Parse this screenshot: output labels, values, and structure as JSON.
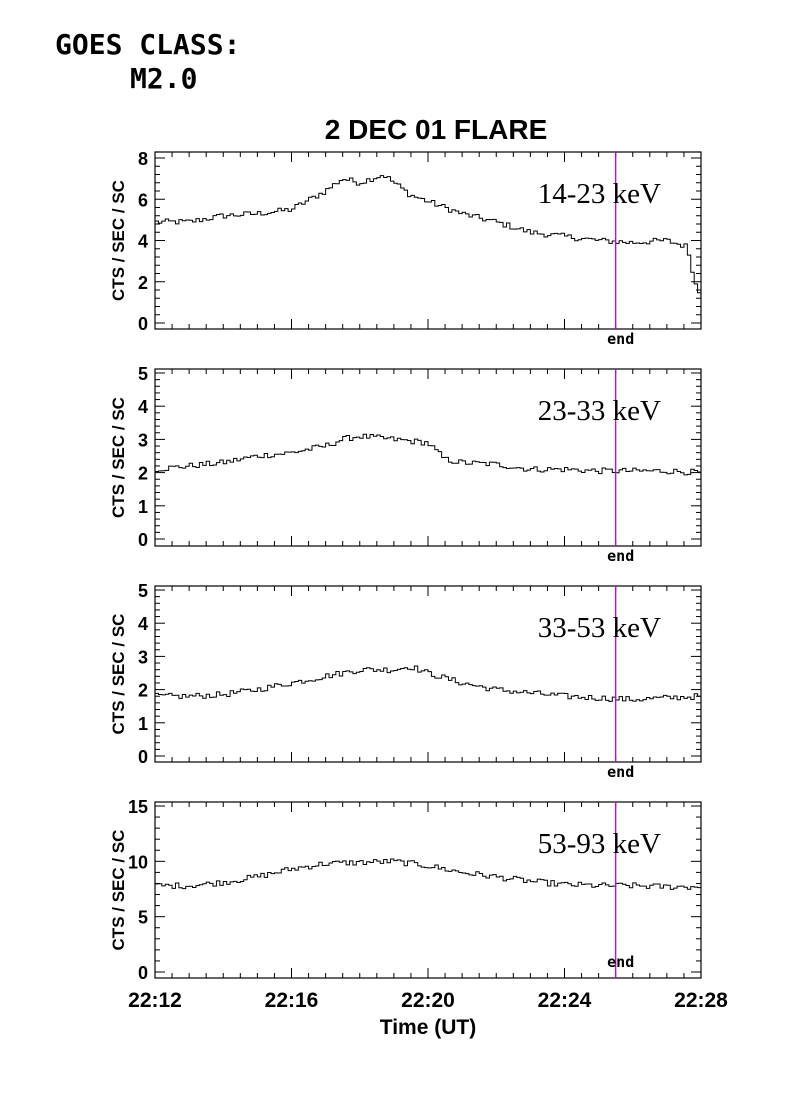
{
  "header": {
    "goes_label": "GOES CLASS:",
    "goes_class": "M2.0"
  },
  "chart_data": {
    "type": "line",
    "title": "2 DEC 01 FLARE",
    "xlabel": "Time (UT)",
    "x_ticks": [
      "22:12",
      "22:16",
      "22:20",
      "22:24",
      "22:28"
    ],
    "xlim_minutes": [
      0,
      16
    ],
    "end_marker_minute": 13.5,
    "end_label": "end",
    "end_line_color": "#cc00cc",
    "line_color": "#000000",
    "panels": [
      {
        "band": "14-23 keV",
        "ylabel": "CTS / SEC / SC",
        "ylim": [
          0,
          8
        ],
        "y_ticks": [
          "0",
          "2",
          "4",
          "6",
          "8"
        ],
        "profile": [
          [
            0,
            4.9
          ],
          [
            1,
            4.9
          ],
          [
            2,
            5.2
          ],
          [
            3,
            5.3
          ],
          [
            4,
            5.5
          ],
          [
            5,
            6.4
          ],
          [
            5.5,
            7.0
          ],
          [
            6,
            6.8
          ],
          [
            6.7,
            7.2
          ],
          [
            7.5,
            6.2
          ],
          [
            8,
            5.9
          ],
          [
            9,
            5.3
          ],
          [
            10,
            4.9
          ],
          [
            11,
            4.4
          ],
          [
            12,
            4.2
          ],
          [
            13,
            4.0
          ],
          [
            14,
            3.9
          ],
          [
            15,
            4.0
          ],
          [
            15.6,
            3.7
          ],
          [
            15.9,
            1.5
          ],
          [
            16,
            1.5
          ]
        ]
      },
      {
        "band": "23-33 keV",
        "ylabel": "CTS / SEC / SC",
        "ylim": [
          0,
          5
        ],
        "y_ticks": [
          "0",
          "1",
          "2",
          "3",
          "4",
          "5"
        ],
        "profile": [
          [
            0,
            2.1
          ],
          [
            1,
            2.2
          ],
          [
            2,
            2.3
          ],
          [
            3,
            2.5
          ],
          [
            4,
            2.6
          ],
          [
            5,
            2.8
          ],
          [
            5.5,
            3.0
          ],
          [
            6,
            3.1
          ],
          [
            7,
            3.0
          ],
          [
            8,
            2.9
          ],
          [
            8.5,
            2.4
          ],
          [
            9,
            2.3
          ],
          [
            10,
            2.25
          ],
          [
            11,
            2.1
          ],
          [
            12,
            2.1
          ],
          [
            13,
            2.05
          ],
          [
            14,
            2.05
          ],
          [
            15,
            2.05
          ],
          [
            16,
            2.0
          ]
        ]
      },
      {
        "band": "33-53 keV",
        "ylabel": "CTS / SEC / SC",
        "ylim": [
          0,
          5
        ],
        "y_ticks": [
          "0",
          "1",
          "2",
          "3",
          "4",
          "5"
        ],
        "profile": [
          [
            0,
            1.8
          ],
          [
            1,
            1.8
          ],
          [
            2,
            1.85
          ],
          [
            3,
            2.0
          ],
          [
            4,
            2.2
          ],
          [
            5,
            2.4
          ],
          [
            6,
            2.6
          ],
          [
            7,
            2.6
          ],
          [
            7.5,
            2.7
          ],
          [
            8,
            2.5
          ],
          [
            9,
            2.2
          ],
          [
            10,
            2.0
          ],
          [
            11,
            1.9
          ],
          [
            12,
            1.8
          ],
          [
            13,
            1.75
          ],
          [
            14,
            1.7
          ],
          [
            15,
            1.75
          ],
          [
            16,
            1.8
          ]
        ]
      },
      {
        "band": "53-93 keV",
        "ylabel": "CTS / SEC / SC",
        "ylim": [
          0,
          15
        ],
        "y_ticks": [
          "0",
          "5",
          "10",
          "15"
        ],
        "profile": [
          [
            0,
            7.8
          ],
          [
            1,
            7.8
          ],
          [
            2,
            8.1
          ],
          [
            3,
            8.6
          ],
          [
            4,
            9.3
          ],
          [
            5,
            9.8
          ],
          [
            6,
            9.9
          ],
          [
            7,
            10.0
          ],
          [
            8,
            9.6
          ],
          [
            9,
            9.0
          ],
          [
            10,
            8.6
          ],
          [
            11,
            8.2
          ],
          [
            12,
            7.9
          ],
          [
            13,
            7.8
          ],
          [
            14,
            7.8
          ],
          [
            15,
            7.7
          ],
          [
            16,
            7.7
          ]
        ]
      }
    ]
  }
}
